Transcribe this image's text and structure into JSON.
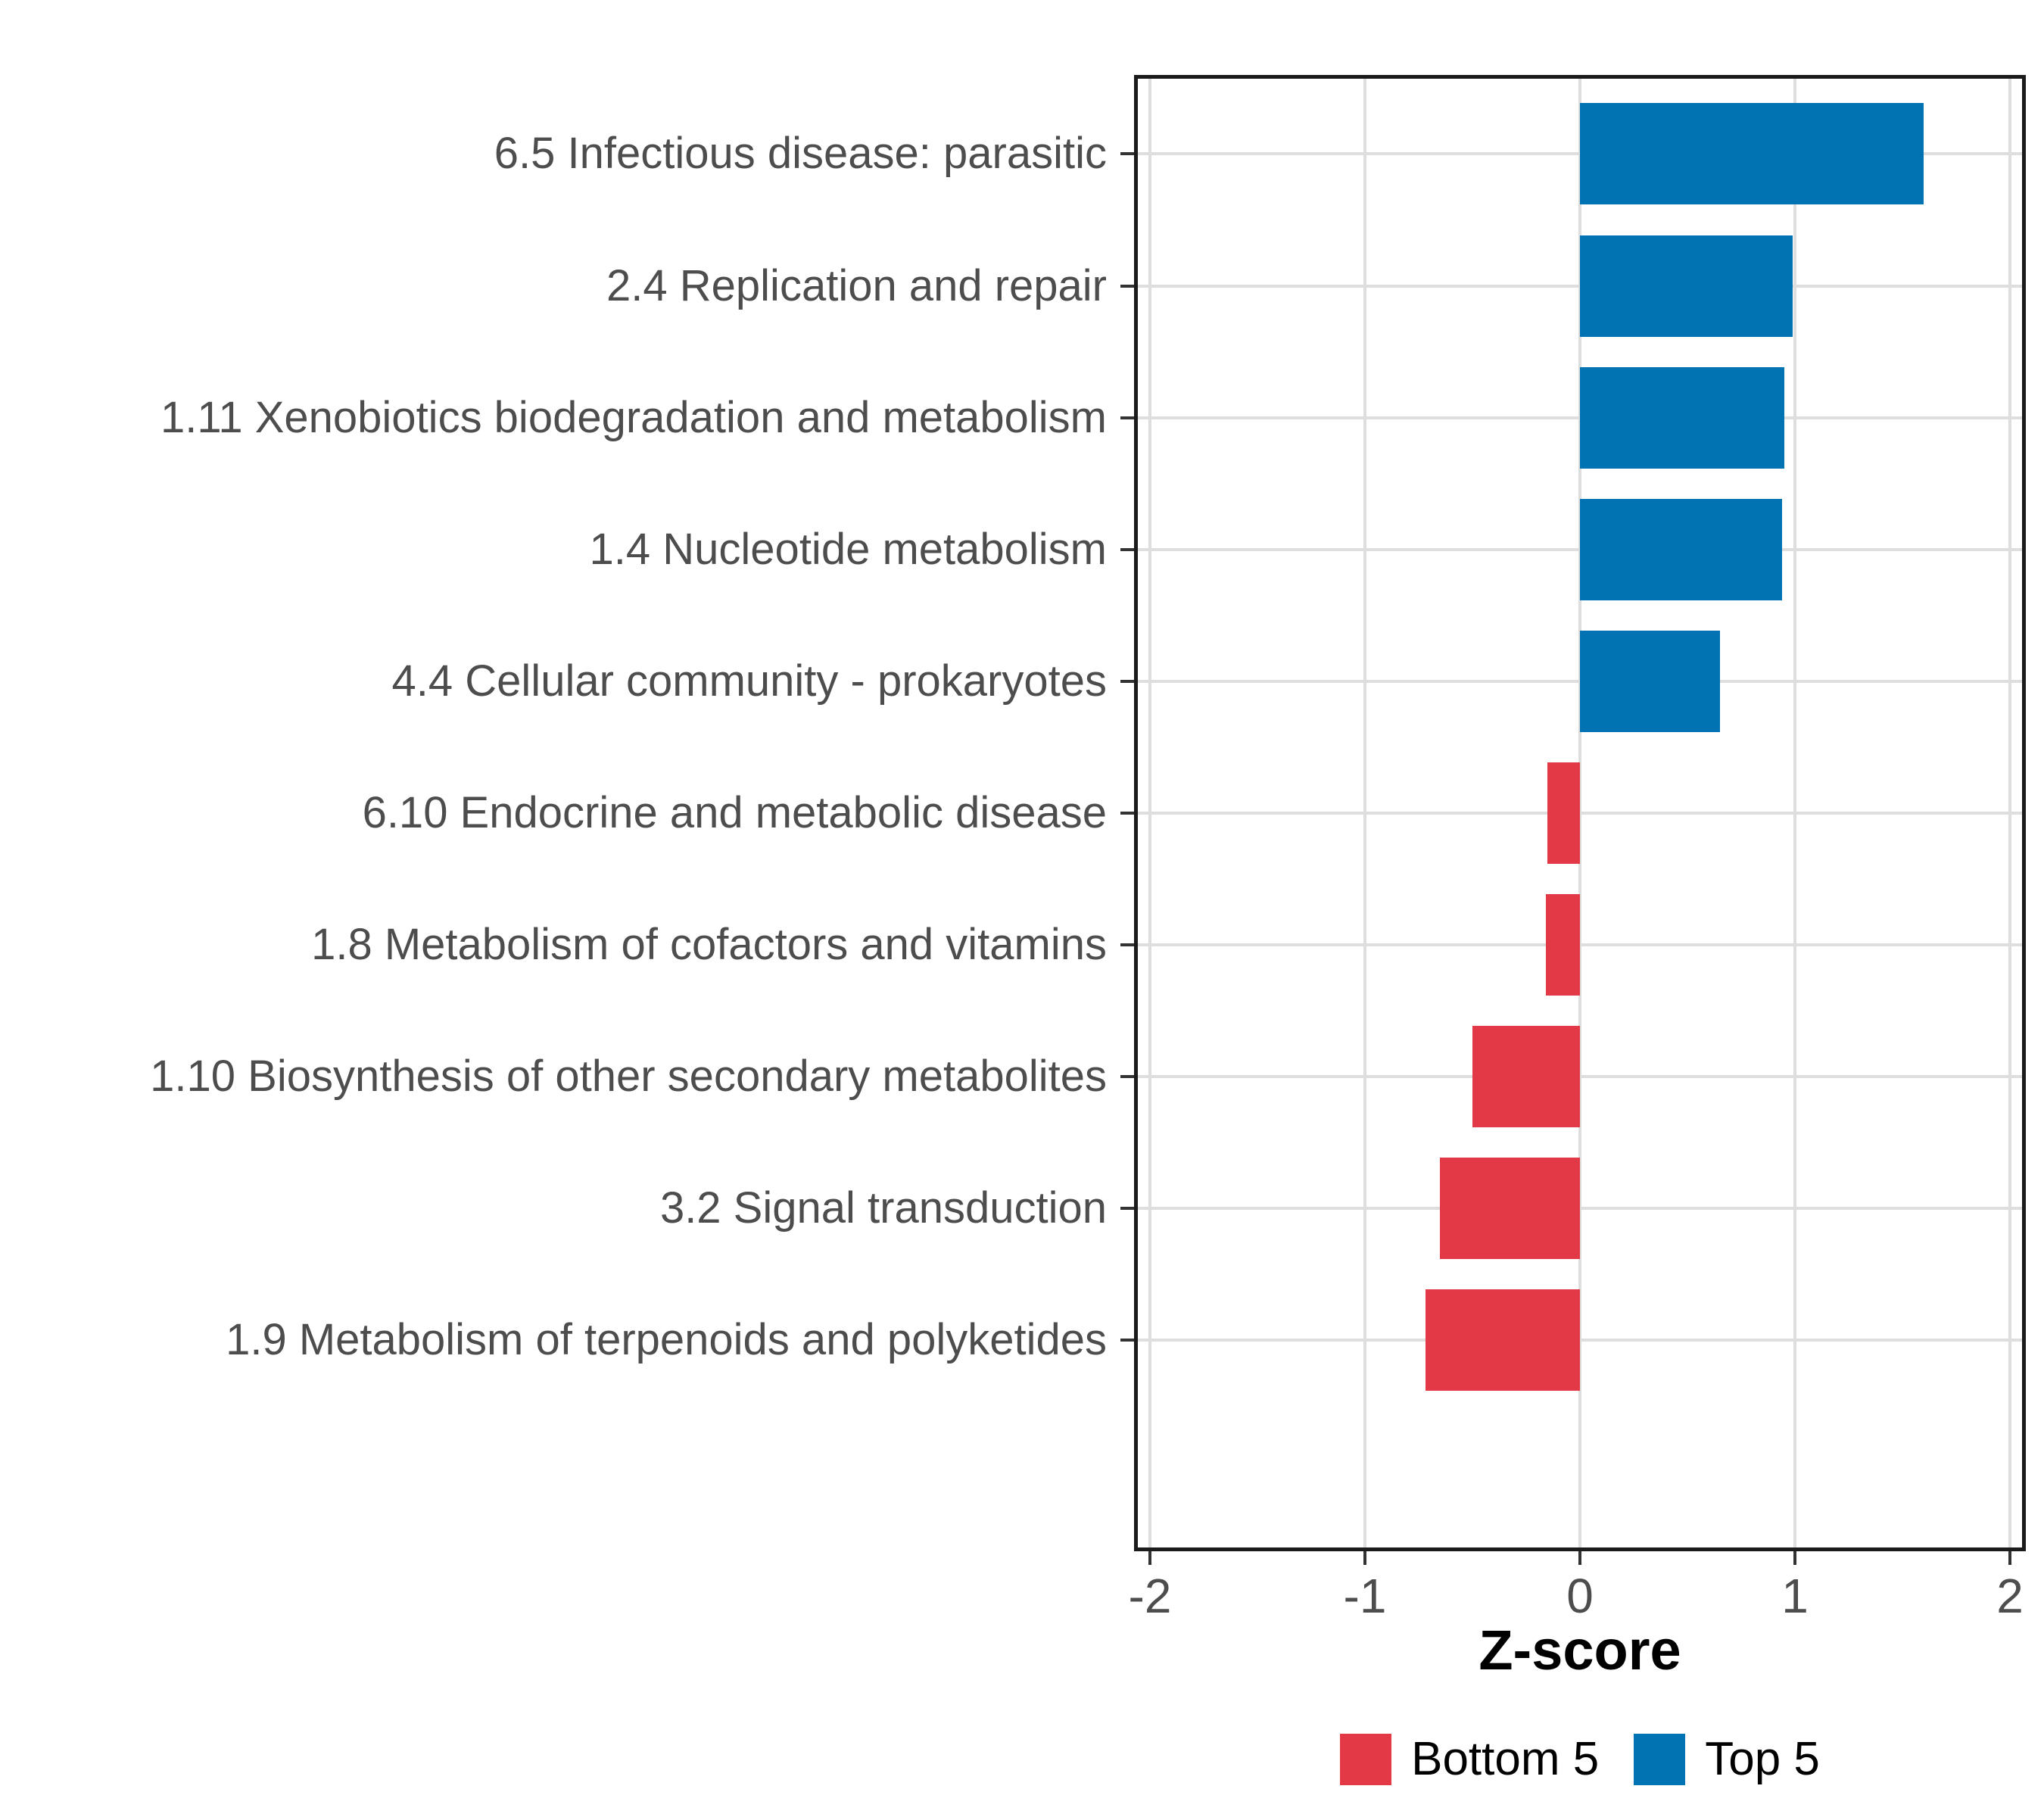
{
  "chart_data": {
    "type": "bar",
    "orientation": "horizontal",
    "title": "",
    "xlabel": "Z-score",
    "ylabel": "",
    "categories": [
      "6.5 Infectious disease: parasitic",
      "2.4 Replication and repair",
      "1.11 Xenobiotics biodegradation and metabolism",
      "1.4 Nucleotide metabolism",
      "4.4 Cellular community - prokaryotes",
      "6.10 Endocrine and metabolic disease",
      "1.8 Metabolism of cofactors and vitamins",
      "1.10 Biosynthesis of other secondary metabolites",
      "3.2 Signal transduction",
      "1.9 Metabolism of terpenoids and polyketides"
    ],
    "values": [
      1.6,
      0.99,
      0.95,
      0.94,
      0.65,
      -0.15,
      -0.16,
      -0.5,
      -0.65,
      -0.72
    ],
    "groups": [
      "Top 5",
      "Top 5",
      "Top 5",
      "Top 5",
      "Top 5",
      "Bottom 5",
      "Bottom 5",
      "Bottom 5",
      "Bottom 5",
      "Bottom 5"
    ],
    "xlim": [
      -2,
      2
    ],
    "xticks": [
      -2,
      -1,
      0,
      1,
      2
    ],
    "xtick_labels": [
      "-2",
      "-1",
      "0",
      "1",
      "2"
    ],
    "grid": "major-only",
    "legend_position": "bottom",
    "legend_items": [
      {
        "label": "Bottom 5",
        "color": "#e33946"
      },
      {
        "label": "Top 5",
        "color": "#0273b2"
      }
    ],
    "series_colors": {
      "Top 5": "#0273b2",
      "Bottom 5": "#e33946"
    }
  },
  "style_colors": {
    "grid": "#dedede",
    "panel_border": "#1b1b1b",
    "axis_text": "#4d4d4d",
    "tick_mark": "#333333"
  }
}
